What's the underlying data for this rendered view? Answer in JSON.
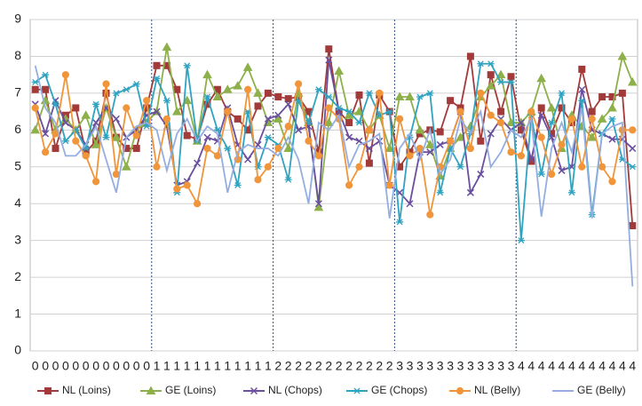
{
  "chart_data": {
    "type": "line",
    "categories": [
      "0",
      "0",
      "0",
      "0",
      "0",
      "0",
      "0",
      "0",
      "0",
      "0",
      "0",
      "0",
      "1",
      "1",
      "1",
      "1",
      "1",
      "1",
      "1",
      "1",
      "1",
      "1",
      "1",
      "1",
      "2",
      "2",
      "2",
      "2",
      "2",
      "2",
      "2",
      "2",
      "2",
      "2",
      "2",
      "2",
      "3",
      "3",
      "3",
      "3",
      "3",
      "3",
      "3",
      "3",
      "3",
      "3",
      "3",
      "3",
      "4",
      "4",
      "4",
      "4",
      "4",
      "4",
      "4",
      "4",
      "4",
      "4",
      "4",
      "4"
    ],
    "ylim": [
      0,
      9
    ],
    "yticks": [
      0,
      1,
      2,
      3,
      4,
      5,
      6,
      7,
      8,
      9
    ],
    "grid": true,
    "legend": "bottom",
    "series": [
      {
        "name": "NL (Loins)",
        "color": "#a33a3a",
        "marker": "square",
        "values": [
          7.1,
          7.1,
          5.5,
          6.4,
          6.6,
          5.4,
          5.7,
          7.0,
          5.8,
          5.5,
          5.5,
          6.6,
          7.75,
          7.75,
          7.1,
          5.85,
          5.75,
          6.7,
          7.1,
          6.5,
          6.3,
          6.0,
          6.65,
          7.0,
          6.9,
          6.85,
          6.9,
          6.5,
          5.4,
          8.2,
          6.5,
          6.2,
          6.95,
          5.1,
          6.95,
          6.5,
          5.0,
          5.4,
          5.9,
          6.0,
          5.95,
          6.8,
          6.6,
          8.0,
          5.7,
          7.5,
          6.5,
          7.45,
          6.0,
          5.15,
          6.6,
          5.9,
          6.6,
          6.2,
          7.65,
          6.5,
          6.9,
          6.9,
          7.0,
          3.4
        ]
      },
      {
        "name": "GE (Loins)",
        "color": "#8db04a",
        "marker": "triangle",
        "values": [
          6.0,
          6.8,
          6.0,
          6.3,
          6.0,
          6.4,
          5.6,
          6.6,
          5.8,
          5.0,
          6.0,
          6.2,
          6.5,
          8.25,
          6.5,
          6.8,
          5.7,
          7.5,
          6.9,
          7.1,
          7.2,
          7.7,
          7.0,
          6.2,
          6.3,
          5.5,
          7.0,
          6.2,
          3.9,
          6.2,
          7.6,
          6.4,
          6.5,
          6.0,
          6.4,
          5.5,
          6.9,
          6.9,
          6.0,
          5.6,
          4.75,
          5.5,
          5.8,
          6.1,
          6.9,
          7.2,
          7.5,
          6.2,
          6.2,
          6.5,
          7.4,
          6.6,
          5.5,
          6.4,
          6.1,
          5.8,
          6.3,
          6.6,
          8.0,
          7.3
        ]
      },
      {
        "name": "NL (Chops)",
        "color": "#6a4f9e",
        "marker": "x",
        "values": [
          6.7,
          5.9,
          6.8,
          6.2,
          6.0,
          5.6,
          6.2,
          6.6,
          6.3,
          5.8,
          6.0,
          6.4,
          6.5,
          6.1,
          4.5,
          4.6,
          5.1,
          5.8,
          5.7,
          6.6,
          5.6,
          5.2,
          5.6,
          6.3,
          6.4,
          6.7,
          6.0,
          6.1,
          4.0,
          7.9,
          6.5,
          5.8,
          5.7,
          5.5,
          5.7,
          4.5,
          4.3,
          4.0,
          5.4,
          5.4,
          5.6,
          5.7,
          6.5,
          4.3,
          4.8,
          5.9,
          6.3,
          6.0,
          6.2,
          5.2,
          6.4,
          5.8,
          4.9,
          5.0,
          7.1,
          6.0,
          5.9,
          5.75,
          5.75,
          5.5
        ]
      },
      {
        "name": "GE (Chops)",
        "color": "#2fa3c0",
        "marker": "star",
        "values": [
          7.3,
          7.5,
          6.7,
          5.7,
          6.0,
          5.5,
          6.7,
          5.8,
          7.0,
          7.1,
          7.25,
          6.1,
          7.4,
          6.8,
          4.3,
          7.75,
          5.7,
          6.9,
          6.0,
          5.5,
          4.5,
          6.5,
          5.0,
          5.8,
          5.6,
          4.65,
          6.8,
          6.2,
          7.1,
          6.9,
          6.6,
          6.5,
          6.2,
          7.0,
          6.4,
          6.5,
          3.5,
          5.8,
          6.9,
          7.0,
          4.3,
          5.5,
          5.0,
          5.9,
          7.8,
          7.8,
          7.3,
          7.3,
          3.0,
          6.4,
          4.8,
          6.2,
          7.0,
          4.3,
          6.8,
          3.7,
          5.9,
          6.3,
          5.2,
          5.0
        ]
      },
      {
        "name": "NL (Belly)",
        "color": "#f0953a",
        "marker": "circle",
        "values": [
          6.6,
          5.4,
          5.9,
          7.5,
          5.7,
          5.3,
          4.6,
          7.25,
          4.8,
          6.6,
          5.85,
          6.8,
          5.0,
          6.3,
          4.4,
          4.5,
          4.0,
          5.5,
          5.3,
          6.5,
          5.2,
          7.1,
          4.65,
          5.0,
          5.5,
          6.1,
          7.25,
          5.7,
          5.3,
          6.6,
          6.3,
          4.5,
          5.0,
          6.0,
          7.0,
          4.5,
          6.3,
          5.3,
          5.5,
          3.7,
          5.0,
          5.7,
          6.5,
          5.5,
          7.0,
          6.4,
          6.2,
          5.4,
          5.3,
          6.5,
          5.8,
          4.8,
          5.6,
          6.3,
          5.0,
          6.3,
          5.0,
          4.6,
          6.0,
          6.0
        ]
      },
      {
        "name": "GE (Belly)",
        "color": "#94aee0",
        "marker": "none",
        "values": [
          7.75,
          6.6,
          6.2,
          5.3,
          5.3,
          5.6,
          6.1,
          5.2,
          4.3,
          5.8,
          6.1,
          6.2,
          6.0,
          4.9,
          5.9,
          6.3,
          5.7,
          6.1,
          5.9,
          4.3,
          5.4,
          5.6,
          5.5,
          5.5,
          5.3,
          5.8,
          5.2,
          4.0,
          6.2,
          6.0,
          6.4,
          5.0,
          5.6,
          5.7,
          5.9,
          3.6,
          5.5,
          5.9,
          5.2,
          6.0,
          4.8,
          5.2,
          6.3,
          5.9,
          6.5,
          5.0,
          5.4,
          6.0,
          5.8,
          6.3,
          3.65,
          5.5,
          6.2,
          5.4,
          6.6,
          3.6,
          5.9,
          6.1,
          6.2,
          1.75
        ]
      }
    ]
  }
}
